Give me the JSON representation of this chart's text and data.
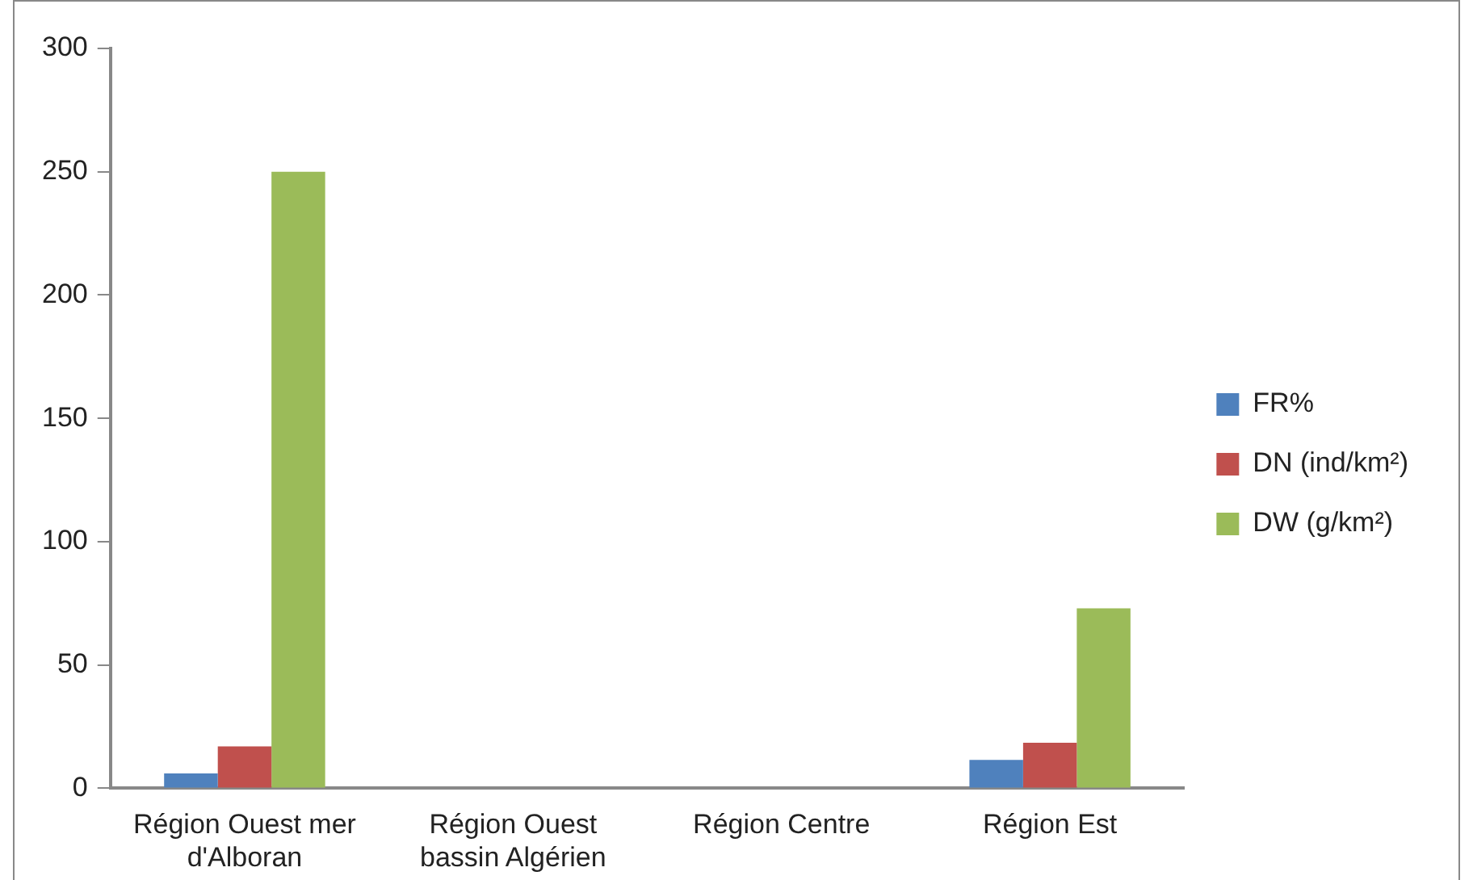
{
  "chart_data": {
    "type": "bar",
    "categories": [
      "Région Ouest mer d'Alboran",
      "Région Ouest bassin Algérien",
      "Région Centre",
      "Région Est"
    ],
    "series": [
      {
        "name": "FR%",
        "color": "#4f81bd",
        "values": [
          6,
          0,
          0,
          11.5
        ]
      },
      {
        "name": "DN (ind/km²)",
        "color": "#c0504d",
        "values": [
          17,
          0,
          0,
          18.5
        ]
      },
      {
        "name": "DW (g/km²)",
        "color": "#9bbb59",
        "values": [
          250,
          0,
          0,
          73
        ]
      }
    ],
    "ylim": [
      0,
      300
    ],
    "yticks": [
      0,
      50,
      100,
      150,
      200,
      250,
      300
    ],
    "grid": false,
    "legend": "right"
  }
}
